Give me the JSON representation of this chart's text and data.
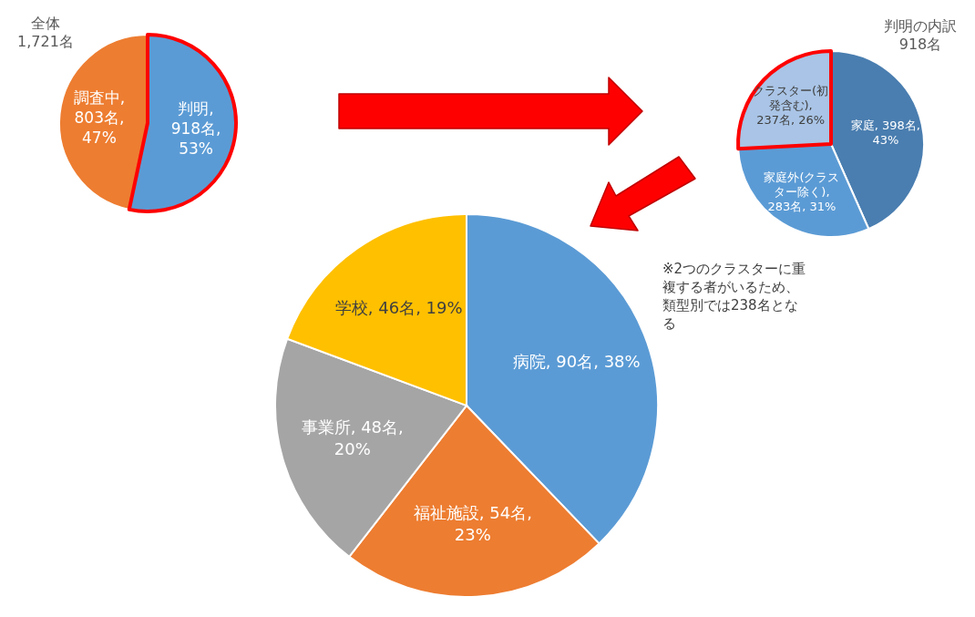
{
  "chart_data": [
    {
      "type": "pie",
      "title": "全体\n1,721名",
      "categories": [
        "判明",
        "調査中"
      ],
      "values": [
        918,
        803
      ],
      "colors": [
        "#5b9bd5",
        "#ed7d31"
      ],
      "value_labels": [
        ", 918名, 53%",
        ", 803名, 47%"
      ]
    },
    {
      "type": "pie",
      "title": "判明の内訳\n918名",
      "categories": [
        "家庭",
        "家庭外(クラスター除く)",
        "クラスター(初発含む)"
      ],
      "values": [
        398,
        283,
        237
      ],
      "colors": [
        "#4a7eb0",
        "#5b9bd5",
        "#a9c4e6"
      ],
      "value_labels": [
        ", 398名, 43%",
        ", 283名, 31%",
        ", 237名, 26%"
      ]
    },
    {
      "type": "pie",
      "categories": [
        "病院",
        "福祉施設",
        "事業所",
        "学校"
      ],
      "values": [
        90,
        54,
        48,
        46
      ],
      "colors": [
        "#5b9bd5",
        "#ed7d31",
        "#a5a5a5",
        "#ffc000"
      ],
      "value_labels": [
        ", 90名, 38%",
        ", 54名, 23%",
        ", 48名, 20%",
        ", 46名, 19%"
      ],
      "annotations": [
        "※2つのクラスターに重複する者がいるため、類型別では238名となる"
      ]
    }
  ]
}
